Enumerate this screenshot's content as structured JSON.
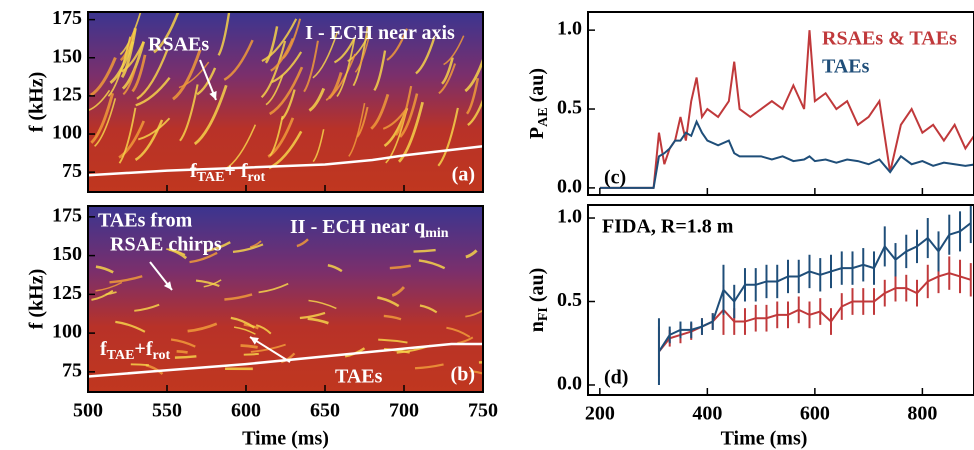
{
  "chart_data": [
    {
      "type": "spectrogram",
      "panel": "(a)",
      "label": [
        "I - ECH near axis"
      ],
      "ylabel": "f (kHz)",
      "xlim": [
        500,
        750
      ],
      "xticks": [
        500,
        550,
        600,
        650,
        700,
        750
      ],
      "ylim": [
        62,
        180
      ],
      "yticks": [
        75,
        100,
        125,
        150,
        175
      ],
      "annotations": [
        "RSAEs"
      ],
      "line_label": [
        "f",
        "TAE",
        "+ f",
        "rot"
      ],
      "x": [
        500,
        550,
        600,
        650,
        680,
        700,
        750
      ],
      "series": [
        {
          "color": "#ffffff",
          "values": [
            73,
            76,
            78,
            80,
            83,
            86,
            92
          ]
        }
      ]
    },
    {
      "type": "spectrogram",
      "panel": "(b)",
      "label": [
        "II - ECH near q",
        "min"
      ],
      "ylabel": "f (kHz)",
      "xlabel": "Time (ms)",
      "xlim": [
        500,
        750
      ],
      "xticks": [
        500,
        550,
        600,
        650,
        700,
        750
      ],
      "ylim": [
        62,
        182
      ],
      "yticks": [
        75,
        100,
        125,
        150,
        175
      ],
      "annotations": [
        "TAEs from",
        "RSAE chirps",
        "TAEs"
      ],
      "line_label": [
        "f",
        "TAE",
        "+f",
        "rot"
      ],
      "x": [
        500,
        550,
        600,
        650,
        700,
        730,
        750
      ],
      "series": [
        {
          "color": "#ffffff",
          "values": [
            72,
            76,
            80,
            85,
            90,
            93,
            93
          ]
        }
      ]
    },
    {
      "type": "line",
      "panel": "(c)",
      "ylabel": [
        "P",
        "AE",
        " (au)"
      ],
      "legend": "top-right",
      "xlim": [
        178,
        896
      ],
      "xticks": [
        200,
        400,
        600,
        800
      ],
      "ylim": [
        -0.045,
        1.115
      ],
      "yticks": [
        {
          "value": 0,
          "label": "0.0"
        },
        {
          "value": 0.5,
          "label": "0.5"
        },
        {
          "value": 1,
          "label": "1.0"
        }
      ],
      "x": [
        200,
        300,
        310,
        320,
        330,
        340,
        350,
        360,
        370,
        380,
        390,
        400,
        420,
        440,
        450,
        460,
        480,
        500,
        520,
        540,
        560,
        580,
        590,
        600,
        620,
        640,
        660,
        680,
        700,
        720,
        740,
        760,
        780,
        800,
        820,
        840,
        860,
        880,
        900
      ],
      "series": [
        {
          "name": "RSAEs & TAEs",
          "color": "#c0393b",
          "values": [
            0,
            0,
            0.35,
            0.15,
            0.25,
            0.3,
            0.45,
            0.3,
            0.55,
            0.7,
            0.45,
            0.5,
            0.45,
            0.55,
            0.8,
            0.5,
            0.45,
            0.5,
            0.55,
            0.5,
            0.65,
            0.5,
            1.0,
            0.55,
            0.6,
            0.5,
            0.55,
            0.4,
            0.45,
            0.55,
            0.1,
            0.4,
            0.5,
            0.35,
            0.4,
            0.3,
            0.4,
            0.25,
            0.35
          ]
        },
        {
          "name": "TAEs",
          "color": "#1f4e79",
          "values": [
            0,
            0,
            0.2,
            0.22,
            0.25,
            0.3,
            0.3,
            0.35,
            0.33,
            0.42,
            0.35,
            0.3,
            0.27,
            0.3,
            0.22,
            0.2,
            0.2,
            0.2,
            0.18,
            0.2,
            0.17,
            0.18,
            0.2,
            0.17,
            0.18,
            0.16,
            0.18,
            0.17,
            0.15,
            0.18,
            0.1,
            0.2,
            0.15,
            0.17,
            0.14,
            0.16,
            0.15,
            0.14,
            0.15
          ]
        }
      ]
    },
    {
      "type": "errorbar",
      "panel": "(d)",
      "ylabel": [
        "n",
        "FI",
        " (au)"
      ],
      "xlabel": "Time (ms)",
      "annotations": [
        "FIDA, R=1.8 m"
      ],
      "xlim": [
        178,
        896
      ],
      "xticks": [
        200,
        400,
        600,
        800
      ],
      "ylim": [
        -0.06,
        1.078
      ],
      "yticks": [
        {
          "value": 0,
          "label": "0.0"
        },
        {
          "value": 0.5,
          "label": "0.5"
        },
        {
          "value": 1,
          "label": "1.0"
        }
      ],
      "x": [
        310,
        330,
        350,
        370,
        390,
        410,
        430,
        450,
        470,
        490,
        510,
        530,
        550,
        570,
        590,
        610,
        630,
        650,
        670,
        690,
        710,
        730,
        750,
        770,
        790,
        810,
        830,
        850,
        870,
        890
      ],
      "series": [
        {
          "color": "#c0393b",
          "values": [
            0.2,
            0.28,
            0.3,
            0.32,
            0.35,
            0.38,
            0.45,
            0.38,
            0.38,
            0.4,
            0.4,
            0.42,
            0.42,
            0.45,
            0.42,
            0.44,
            0.38,
            0.47,
            0.5,
            0.5,
            0.5,
            0.55,
            0.58,
            0.58,
            0.55,
            0.62,
            0.65,
            0.67,
            0.65,
            0.63
          ],
          "errors": [
            0.15,
            0.05,
            0.05,
            0.05,
            0.05,
            0.05,
            0.15,
            0.08,
            0.08,
            0.08,
            0.08,
            0.08,
            0.08,
            0.08,
            0.08,
            0.08,
            0.08,
            0.08,
            0.08,
            0.08,
            0.08,
            0.08,
            0.08,
            0.08,
            0.08,
            0.1,
            0.1,
            0.1,
            0.1,
            0.1
          ]
        },
        {
          "color": "#1f4e79",
          "values": [
            0.2,
            0.3,
            0.33,
            0.33,
            0.35,
            0.38,
            0.57,
            0.5,
            0.6,
            0.6,
            0.62,
            0.62,
            0.65,
            0.65,
            0.68,
            0.66,
            0.68,
            0.7,
            0.7,
            0.72,
            0.7,
            0.83,
            0.75,
            0.8,
            0.83,
            0.88,
            0.8,
            0.9,
            0.92,
            0.97
          ],
          "errors": [
            0.2,
            0.05,
            0.05,
            0.05,
            0.05,
            0.05,
            0.15,
            0.1,
            0.1,
            0.1,
            0.1,
            0.1,
            0.1,
            0.1,
            0.1,
            0.1,
            0.1,
            0.1,
            0.1,
            0.1,
            0.1,
            0.12,
            0.1,
            0.1,
            0.1,
            0.12,
            0.12,
            0.12,
            0.12,
            0.12
          ]
        }
      ]
    }
  ]
}
